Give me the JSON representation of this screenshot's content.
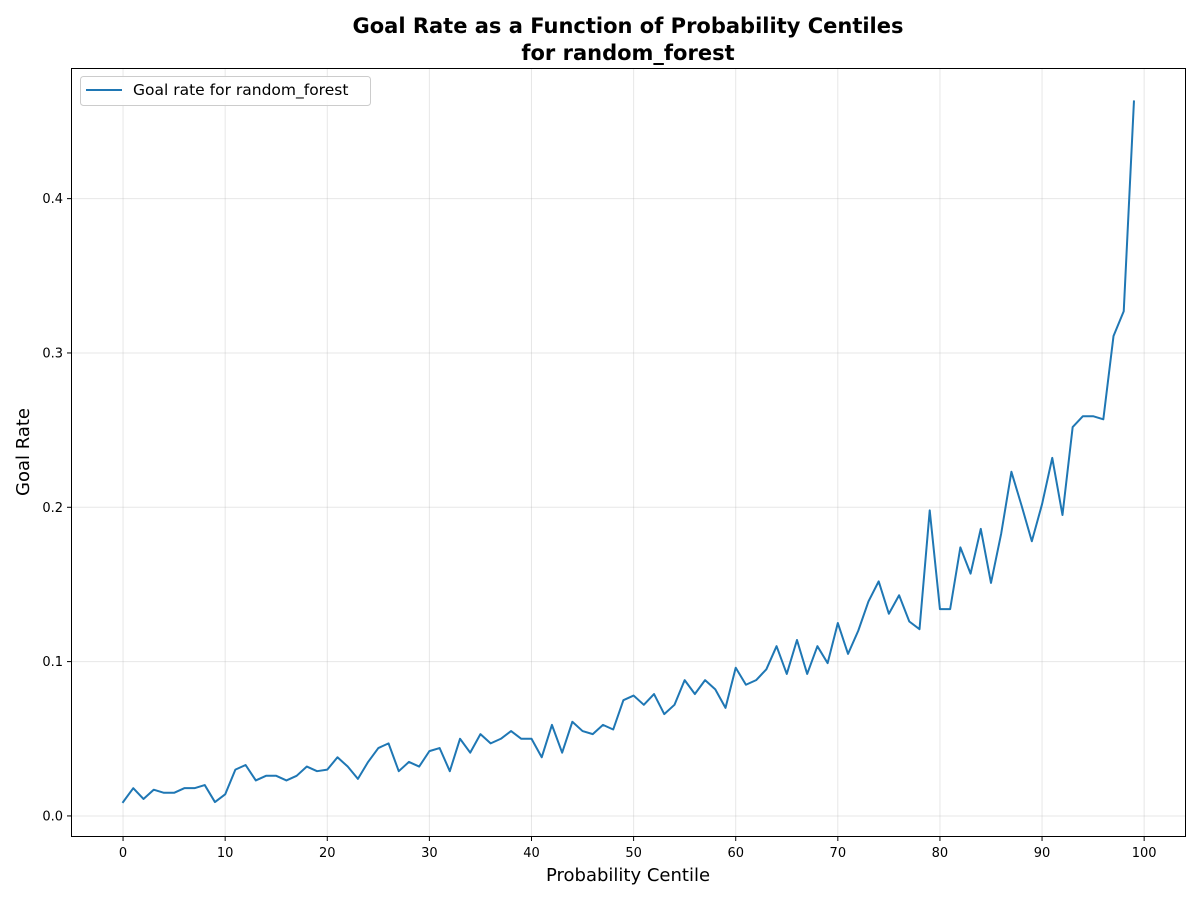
{
  "chart_data": {
    "type": "line",
    "title_line1": "Goal Rate as a Function of Probability Centiles",
    "title_line2": "for random_forest",
    "xlabel": "Probability Centile",
    "ylabel": "Goal Rate",
    "xlim": [
      -5,
      104
    ],
    "ylim": [
      -0.013,
      0.484
    ],
    "xticks": [
      0,
      10,
      20,
      30,
      40,
      50,
      60,
      70,
      80,
      90,
      100
    ],
    "yticks": [
      0.0,
      0.1,
      0.2,
      0.3,
      0.4
    ],
    "ytick_labels": [
      "0.0",
      "0.1",
      "0.2",
      "0.3",
      "0.4"
    ],
    "grid": true,
    "legend_position": "upper-left",
    "series": [
      {
        "name": "Goal rate for random_forest",
        "color": "#1f77b4",
        "x": [
          0,
          1,
          2,
          3,
          4,
          5,
          6,
          7,
          8,
          9,
          10,
          11,
          12,
          13,
          14,
          15,
          16,
          17,
          18,
          19,
          20,
          21,
          22,
          23,
          24,
          25,
          26,
          27,
          28,
          29,
          30,
          31,
          32,
          33,
          34,
          35,
          36,
          37,
          38,
          39,
          40,
          41,
          42,
          43,
          44,
          45,
          46,
          47,
          48,
          49,
          50,
          51,
          52,
          53,
          54,
          55,
          56,
          57,
          58,
          59,
          60,
          61,
          62,
          63,
          64,
          65,
          66,
          67,
          68,
          69,
          70,
          71,
          72,
          73,
          74,
          75,
          76,
          77,
          78,
          79,
          80,
          81,
          82,
          83,
          84,
          85,
          86,
          87,
          88,
          89,
          90,
          91,
          92,
          93,
          94,
          95,
          96,
          97,
          98,
          99
        ],
        "values": [
          0.009,
          0.018,
          0.011,
          0.017,
          0.015,
          0.015,
          0.018,
          0.018,
          0.02,
          0.009,
          0.014,
          0.03,
          0.033,
          0.023,
          0.026,
          0.026,
          0.023,
          0.026,
          0.032,
          0.029,
          0.03,
          0.038,
          0.032,
          0.024,
          0.035,
          0.044,
          0.047,
          0.029,
          0.035,
          0.032,
          0.042,
          0.044,
          0.029,
          0.05,
          0.041,
          0.053,
          0.047,
          0.05,
          0.055,
          0.05,
          0.05,
          0.038,
          0.059,
          0.041,
          0.061,
          0.055,
          0.053,
          0.059,
          0.056,
          0.075,
          0.078,
          0.072,
          0.079,
          0.066,
          0.072,
          0.088,
          0.079,
          0.088,
          0.082,
          0.07,
          0.096,
          0.085,
          0.088,
          0.095,
          0.11,
          0.092,
          0.114,
          0.092,
          0.11,
          0.099,
          0.125,
          0.105,
          0.12,
          0.139,
          0.152,
          0.131,
          0.143,
          0.126,
          0.121,
          0.198,
          0.134,
          0.134,
          0.174,
          0.157,
          0.186,
          0.151,
          0.183,
          0.223,
          0.201,
          0.178,
          0.202,
          0.232,
          0.195,
          0.252,
          0.259,
          0.259,
          0.257,
          0.311,
          0.327,
          0.463
        ]
      }
    ]
  }
}
